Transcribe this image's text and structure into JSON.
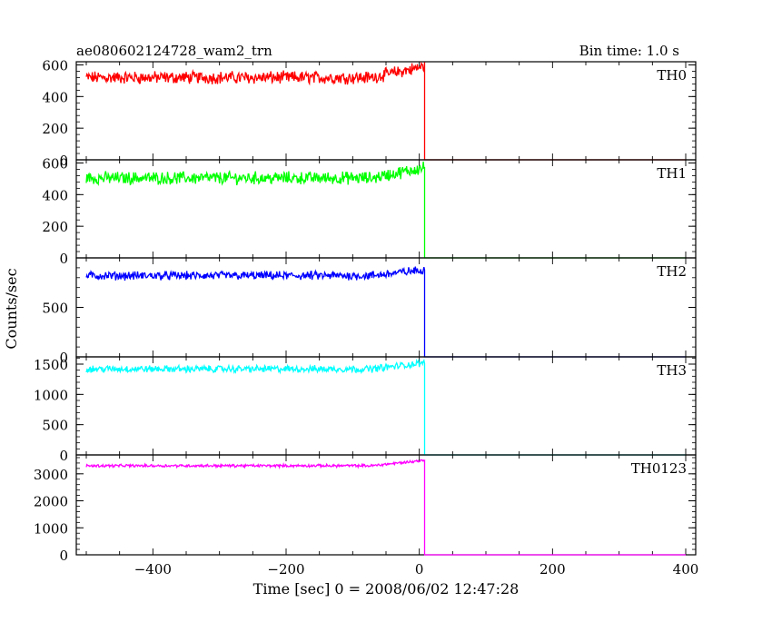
{
  "title": "ae080602124728_wam2_trn",
  "bin_time": "Bin time: 1.0 s",
  "xlabel": "Time [sec] 0 = 2008/06/02 12:47:28",
  "ylabel": "Counts/sec",
  "x_ticks": [
    "−400",
    "−200",
    "0",
    "200",
    "400"
  ],
  "chart_data": [
    {
      "type": "line",
      "series": [
        {
          "name": "TH0",
          "color": "#ff0000",
          "baseline_level": 520,
          "noise": 55,
          "pre_drop_peak": 590,
          "post_drop_level": 0
        }
      ],
      "x_range": [
        -515,
        415
      ],
      "ylim": [
        0,
        620
      ],
      "y_ticks": [
        0,
        200,
        400,
        600
      ],
      "drop_time": 8
    },
    {
      "type": "line",
      "series": [
        {
          "name": "TH1",
          "color": "#00ff00",
          "baseline_level": 505,
          "noise": 55,
          "pre_drop_peak": 570,
          "post_drop_level": 0
        }
      ],
      "x_range": [
        -515,
        415
      ],
      "ylim": [
        0,
        620
      ],
      "y_ticks": [
        0,
        200,
        400,
        600
      ],
      "drop_time": 8
    },
    {
      "type": "line",
      "series": [
        {
          "name": "TH2",
          "color": "#0000ff",
          "baseline_level": 820,
          "noise": 60,
          "pre_drop_peak": 880,
          "post_drop_level": 0
        }
      ],
      "x_range": [
        -515,
        415
      ],
      "ylim": [
        0,
        1000
      ],
      "y_ticks": [
        0,
        500
      ],
      "drop_time": 8
    },
    {
      "type": "line",
      "series": [
        {
          "name": "TH3",
          "color": "#00ffff",
          "baseline_level": 1420,
          "noise": 80,
          "pre_drop_peak": 1520,
          "post_drop_level": 0
        }
      ],
      "x_range": [
        -515,
        415
      ],
      "ylim": [
        0,
        1620
      ],
      "y_ticks": [
        0,
        500,
        1000,
        1500
      ],
      "drop_time": 8
    },
    {
      "type": "line",
      "series": [
        {
          "name": "TH0123",
          "color": "#ff00ff",
          "baseline_level": 3300,
          "noise": 70,
          "pre_drop_peak": 3500,
          "post_drop_level": 0
        }
      ],
      "x_range": [
        -515,
        415
      ],
      "ylim": [
        0,
        3700
      ],
      "y_ticks": [
        0,
        1000,
        2000,
        3000
      ],
      "drop_time": 8
    }
  ]
}
